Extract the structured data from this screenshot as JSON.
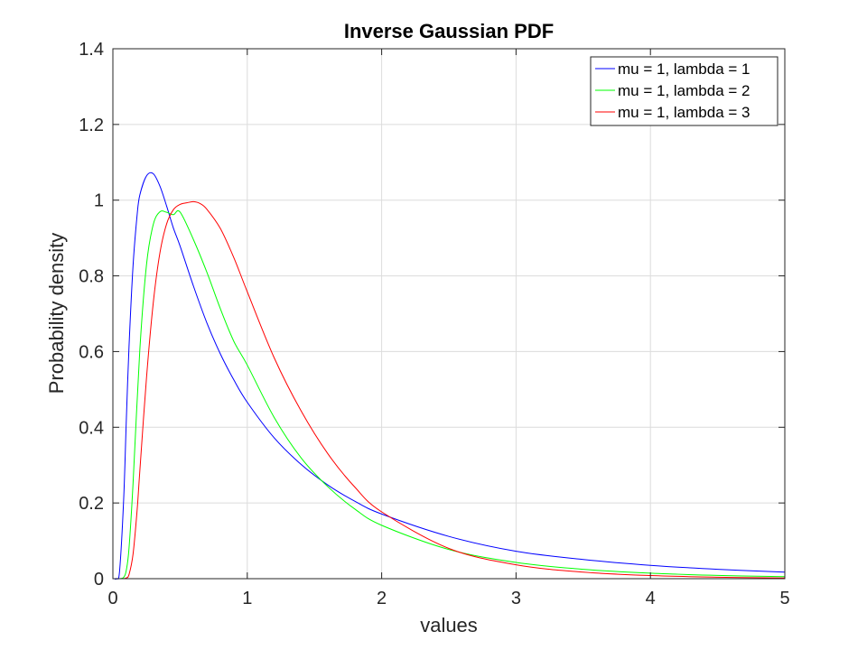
{
  "chart_data": {
    "type": "line",
    "title": "Inverse Gaussian PDF",
    "xlabel": "values",
    "ylabel": "Probability density",
    "xlim": [
      0,
      5
    ],
    "ylim": [
      0,
      1.4
    ],
    "xticks": [
      0,
      1,
      2,
      3,
      4,
      5
    ],
    "yticks": [
      0,
      0.2,
      0.4,
      0.6,
      0.8,
      1,
      1.2,
      1.4
    ],
    "xtick_labels": [
      "0",
      "1",
      "2",
      "3",
      "4",
      "5"
    ],
    "ytick_labels": [
      "0",
      "0.2",
      "0.4",
      "0.6",
      "0.8",
      "1",
      "1.2",
      "1.4"
    ],
    "grid": true,
    "legend_position": "top-right",
    "series": [
      {
        "name": "mu = 1, lambda = 1",
        "color": "#0000ff",
        "x": [
          0.01,
          0.03,
          0.05,
          0.08,
          0.1,
          0.12,
          0.15,
          0.18,
          0.2,
          0.25,
          0.3,
          0.35,
          0.4,
          0.45,
          0.5,
          0.6,
          0.7,
          0.8,
          0.9,
          1.0,
          1.2,
          1.4,
          1.6,
          1.8,
          2.0,
          2.5,
          3.0,
          3.5,
          4.0,
          4.5,
          5.0
        ],
        "y": [
          0,
          0.0002,
          0.0212,
          0.2081,
          0.4197,
          0.6133,
          0.8269,
          0.9597,
          1.013,
          1.064,
          1.07,
          1.0371,
          0.9843,
          0.9265,
          0.8788,
          0.7724,
          0.6752,
          0.5936,
          0.5252,
          0.466,
          0.3722,
          0.302,
          0.2473,
          0.2046,
          0.1708,
          0.1117,
          0.0724,
          0.0507,
          0.0353,
          0.0248,
          0.0172
        ]
      },
      {
        "name": "mu = 1, lambda = 2",
        "color": "#00ff00",
        "x": [
          0.05,
          0.08,
          0.1,
          0.12,
          0.15,
          0.2,
          0.25,
          0.3,
          0.35,
          0.4,
          0.45,
          0.5,
          0.6,
          0.7,
          0.8,
          0.9,
          1.0,
          1.2,
          1.4,
          1.6,
          1.8,
          2.0,
          2.5,
          3.0,
          3.5,
          4.0,
          4.5,
          5.0
        ],
        "y": [
          0,
          0.0035,
          0.0228,
          0.0806,
          0.2515,
          0.602,
          0.829,
          0.9352,
          0.9693,
          0.968,
          0.9617,
          0.9686,
          0.8953,
          0.809,
          0.7129,
          0.627,
          0.5642,
          0.4261,
          0.3194,
          0.2428,
          0.1841,
          0.141,
          0.0771,
          0.043,
          0.0248,
          0.0145,
          0.0087,
          0.0053
        ]
      },
      {
        "name": "mu = 1, lambda = 3",
        "color": "#ff0000",
        "x": [
          0.08,
          0.1,
          0.12,
          0.15,
          0.18,
          0.2,
          0.25,
          0.3,
          0.35,
          0.4,
          0.45,
          0.5,
          0.55,
          0.6,
          0.65,
          0.7,
          0.8,
          0.9,
          1.0,
          1.2,
          1.4,
          1.6,
          1.8,
          2.0,
          2.5,
          3.0,
          3.5,
          4.0,
          4.5,
          5.0
        ],
        "y": [
          0,
          0.0019,
          0.0109,
          0.0649,
          0.1796,
          0.2823,
          0.5301,
          0.7274,
          0.8608,
          0.9375,
          0.9748,
          0.9887,
          0.993,
          0.996,
          0.9908,
          0.9757,
          0.925,
          0.848,
          0.758,
          0.5837,
          0.4435,
          0.3298,
          0.2421,
          0.1765,
          0.0799,
          0.0367,
          0.0172,
          0.0082,
          0.004,
          0.0019
        ]
      }
    ]
  }
}
